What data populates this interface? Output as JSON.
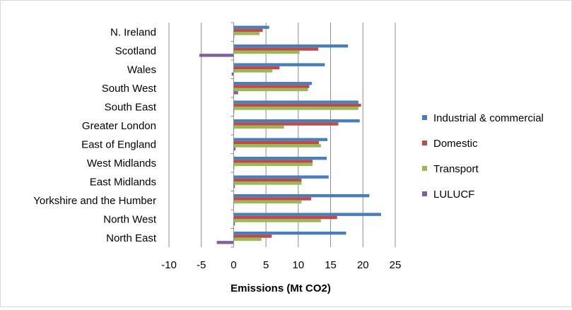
{
  "chart_data": {
    "type": "bar",
    "orientation": "horizontal",
    "title": "",
    "xlabel": "Emissions (Mt CO2)",
    "ylabel": "",
    "xlim": [
      -10,
      25
    ],
    "xticks": [
      -10,
      -5,
      0,
      5,
      10,
      15,
      20,
      25
    ],
    "grid": true,
    "legend_position": "right",
    "categories": [
      "N. Ireland",
      "Scotland",
      "Wales",
      "South West",
      "South East",
      "Greater London",
      "East of England",
      "West Midlands",
      "East Midlands",
      "Yorkshire and the Humber",
      "North West",
      "North East"
    ],
    "series": [
      {
        "name": "Industrial & commercial",
        "color": "#4a7ebb",
        "values": [
          5.5,
          17.7,
          14.1,
          12.1,
          19.3,
          19.5,
          14.5,
          14.4,
          14.7,
          21.0,
          22.8,
          17.4
        ]
      },
      {
        "name": "Domestic",
        "color": "#be4b48",
        "values": [
          4.5,
          13.1,
          7.1,
          11.7,
          19.7,
          16.2,
          13.2,
          12.2,
          10.5,
          12.0,
          16.0,
          5.9
        ]
      },
      {
        "name": "Transport",
        "color": "#98b954",
        "values": [
          4.0,
          10.2,
          6.0,
          11.5,
          19.3,
          7.8,
          13.5,
          12.2,
          10.5,
          10.5,
          13.5,
          4.3
        ]
      },
      {
        "name": "LULUCF",
        "color": "#7d60a0",
        "values": [
          0.1,
          -5.3,
          -0.3,
          0.7,
          0.1,
          0.0,
          0.3,
          0.1,
          0.2,
          0.0,
          0.2,
          -2.6
        ]
      }
    ]
  }
}
